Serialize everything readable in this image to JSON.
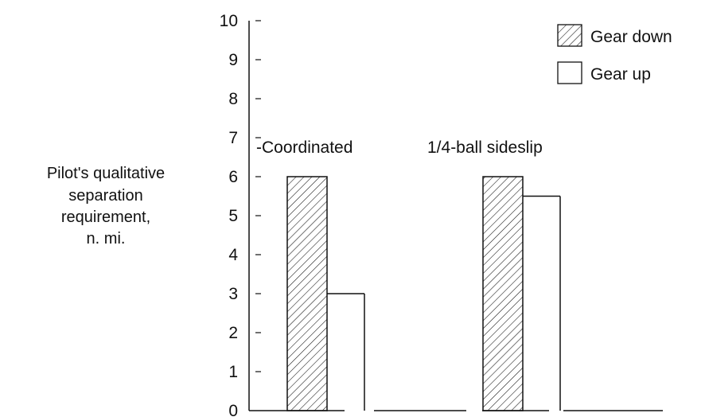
{
  "chart_data": {
    "type": "bar",
    "title": "",
    "xlabel": "",
    "ylabel": [
      "Pilot's qualitative",
      "separation",
      "requirement,",
      "n. mi."
    ],
    "ylim": [
      0,
      10
    ],
    "yticks": [
      "0",
      "1",
      "2",
      "3",
      "4",
      "5",
      "6",
      "7",
      "8",
      "9",
      "10"
    ],
    "categories": [
      "-Coordinated",
      "1/4-ball sideslip"
    ],
    "series": [
      {
        "name": "Gear down",
        "values": [
          6,
          6
        ],
        "pattern": "hatched"
      },
      {
        "name": "Gear up",
        "values": [
          3,
          5.5
        ],
        "pattern": "open"
      }
    ],
    "legend": {
      "position": "top-right"
    },
    "grid": false,
    "colors": {
      "ink": "#111111",
      "background": "#ffffff"
    }
  }
}
